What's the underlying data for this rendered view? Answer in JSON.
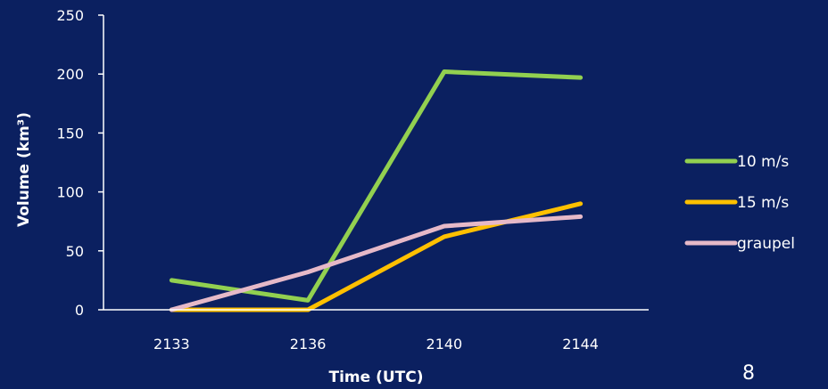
{
  "slide": {
    "page_number": "8"
  },
  "colors": {
    "background": "#0b2060",
    "axis": "#ffffff",
    "text": "#ffffff"
  },
  "chart_data": {
    "type": "line",
    "title": "",
    "xlabel": "Time (UTC)",
    "ylabel": "Volume (km³)",
    "categories": [
      "2133",
      "2136",
      "2140",
      "2144"
    ],
    "ylim": [
      0,
      250
    ],
    "yticks": [
      0,
      50,
      100,
      150,
      200,
      250
    ],
    "grid": false,
    "legend_position": "right",
    "series": [
      {
        "name": "10 m/s",
        "color": "#92d050",
        "values": [
          25,
          8,
          202,
          197
        ]
      },
      {
        "name": "15 m/s",
        "color": "#ffc000",
        "values": [
          0,
          0,
          62,
          90
        ]
      },
      {
        "name": "graupel",
        "color": "#e6b9c8",
        "values": [
          0,
          32,
          71,
          79
        ]
      }
    ]
  }
}
